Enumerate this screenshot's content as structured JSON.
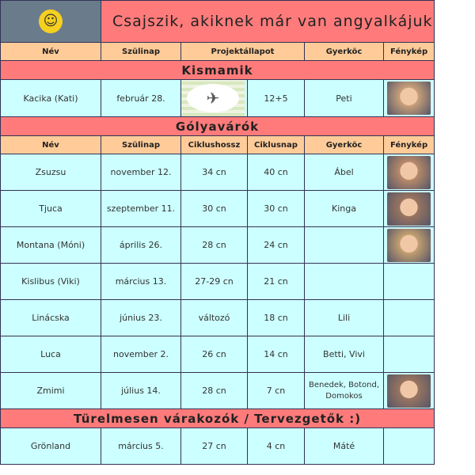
{
  "title": "Csajszik, akiknek már van angyalkájuk :(",
  "logo": "angel-smiley-icon",
  "header1": [
    "Név",
    "Szülinap",
    "Projektállapot",
    "Gyerköc",
    "Fénykép"
  ],
  "section1": "Kismamik",
  "kismamik": [
    {
      "name": "Kacika (Kati)",
      "birthday": "február 28.",
      "status_image": "stork-icon",
      "status": "12+5",
      "kids": "Peti",
      "photo": true
    }
  ],
  "section2": "Gólyavárók",
  "header2": [
    "Név",
    "Szülinap",
    "Ciklushossz",
    "Ciklusnap",
    "Gyerköc",
    "Fénykép"
  ],
  "golyavarok": [
    {
      "name": "Zsuzsu",
      "birthday": "november 12.",
      "cycle": "34 cn",
      "day": "40 cn",
      "kids": "Ábel",
      "photo": true
    },
    {
      "name": "Tjuca",
      "birthday": "szeptember 11.",
      "cycle": "30 cn",
      "day": "30 cn",
      "kids": "Kinga",
      "photo": true
    },
    {
      "name": "Montana (Móni)",
      "birthday": "április 26.",
      "cycle": "28 cn",
      "day": "24 cn",
      "kids": "",
      "photo": true
    },
    {
      "name": "Kislibus (Viki)",
      "birthday": "március 13.",
      "cycle": "27-29 cn",
      "day": "21 cn",
      "kids": "",
      "photo": false
    },
    {
      "name": "Linácska",
      "birthday": "június 23.",
      "cycle": "változó",
      "day": "18 cn",
      "kids": "Lili",
      "photo": false
    },
    {
      "name": "Luca",
      "birthday": "november 2.",
      "cycle": "26 cn",
      "day": "14 cn",
      "kids": "Betti, Vivi",
      "photo": false
    },
    {
      "name": "Zmimi",
      "birthday": "július 14.",
      "cycle": "28 cn",
      "day": "7 cn",
      "kids": "Benedek, Botond, Domokos",
      "photo": true
    }
  ],
  "section3": "Türelmesen várakozók / Tervezgetők :)",
  "tervezgetok": [
    {
      "name": "Grönland",
      "birthday": "március 5.",
      "cycle": "27 cn",
      "day": "4 cn",
      "kids": "Máté",
      "photo": false
    }
  ],
  "colors": {
    "section": "#ff7b7b",
    "header": "#ffcc99",
    "row": "#ccffff"
  }
}
